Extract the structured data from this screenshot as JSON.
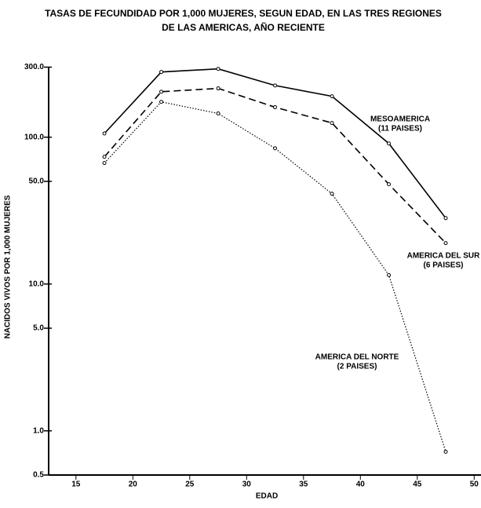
{
  "chart_data": {
    "type": "line",
    "title": [
      "TASAS DE FECUNDIDAD POR 1,000 MUJERES, SEGUN EDAD, EN LAS TRES REGIONES",
      "DE LAS AMERICAS, AÑO RECIENTE"
    ],
    "xlabel": "EDAD",
    "ylabel": "NACIDOS VIVOS POR 1,000 MUJERES",
    "x": [
      17.5,
      22.5,
      27.5,
      32.5,
      37.5,
      42.5,
      47.5
    ],
    "log_y": true,
    "xlim": [
      12.6,
      50.6
    ],
    "xticks": [
      15,
      20,
      25,
      30,
      35,
      40,
      45,
      50
    ],
    "ylim": [
      0.5,
      300
    ],
    "yticks": [
      {
        "value": 0.5,
        "label": "0.5"
      },
      {
        "value": 1,
        "label": "1.0"
      },
      {
        "value": 5,
        "label": "5.0"
      },
      {
        "value": 10,
        "label": "10.0"
      },
      {
        "value": 50,
        "label": "50.0"
      },
      {
        "value": 100,
        "label": "100.0"
      },
      {
        "value": 300,
        "label": "300.0"
      }
    ],
    "series": [
      {
        "name": "MESOAMERICA",
        "note": "(11 PAISES)",
        "color": "#000000",
        "dash": "solid",
        "values": [
          106,
          278,
          292,
          225,
          190,
          90.6,
          28.1
        ]
      },
      {
        "name": "AMERICA DEL SUR",
        "note": "(6 PAISES)",
        "color": "#000000",
        "dash": "dashed",
        "values": [
          73.5,
          204,
          215,
          160,
          125,
          47.8,
          19
        ]
      },
      {
        "name": "AMERICA DEL NORTE",
        "note": "(2 PAISES)",
        "color": "#000000",
        "dash": "dotted",
        "values": [
          66.7,
          174,
          145,
          84,
          41.2,
          11.5,
          0.72
        ]
      }
    ]
  }
}
